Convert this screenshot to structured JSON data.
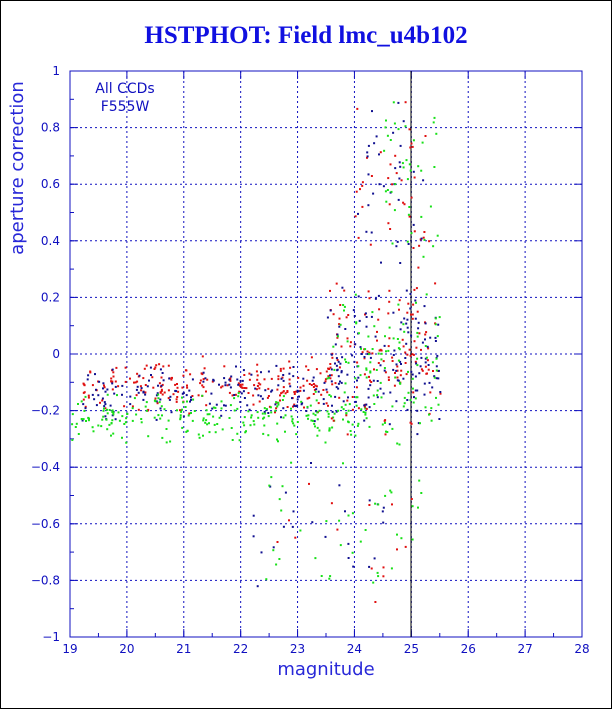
{
  "title": "HSTPHOT: Field lmc_u4b102",
  "chart_data": {
    "type": "scatter",
    "title": "HSTPHOT: Field lmc_u4b102",
    "xlabel": "magnitude",
    "ylabel": "aperture correction",
    "xlim": [
      19,
      28
    ],
    "ylim": [
      -1,
      1
    ],
    "xticks": [
      "19",
      "20",
      "21",
      "22",
      "23",
      "24",
      "25",
      "26",
      "27",
      "28"
    ],
    "yticks": [
      "1",
      "0.8",
      "0.6",
      "0.4",
      "0.2",
      "0",
      "−0.2",
      "−0.4",
      "−0.6",
      "−0.8",
      "−1"
    ],
    "annotations": [
      "All CCDs",
      "F555W"
    ],
    "grid": true,
    "reference_line_x": 25,
    "series_colors": {
      "red": "#e01010",
      "blue": "#101090",
      "green": "#18e018"
    },
    "clusters": [
      {
        "color": "red",
        "n": 220,
        "x": [
          19.2,
          23.6
        ],
        "y": [
          -0.22,
          0.0
        ]
      },
      {
        "color": "blue",
        "n": 170,
        "x": [
          19.2,
          24.0
        ],
        "y": [
          -0.24,
          -0.02
        ]
      },
      {
        "color": "green",
        "n": 230,
        "x": [
          19.0,
          24.2
        ],
        "y": [
          -0.32,
          -0.12
        ]
      },
      {
        "color": "red",
        "n": 130,
        "x": [
          23.5,
          25.5
        ],
        "y": [
          -0.3,
          0.3
        ]
      },
      {
        "color": "blue",
        "n": 130,
        "x": [
          23.5,
          25.5
        ],
        "y": [
          -0.3,
          0.25
        ]
      },
      {
        "color": "green",
        "n": 110,
        "x": [
          23.5,
          25.5
        ],
        "y": [
          -0.35,
          0.25
        ]
      },
      {
        "color": "red",
        "n": 40,
        "x": [
          24.0,
          25.3
        ],
        "y": [
          0.25,
          0.95
        ]
      },
      {
        "color": "blue",
        "n": 35,
        "x": [
          24.0,
          25.3
        ],
        "y": [
          0.25,
          0.95
        ]
      },
      {
        "color": "green",
        "n": 40,
        "x": [
          24.5,
          25.5
        ],
        "y": [
          0.25,
          0.95
        ]
      },
      {
        "color": "blue",
        "n": 25,
        "x": [
          22.0,
          24.6
        ],
        "y": [
          -0.85,
          -0.35
        ]
      },
      {
        "color": "green",
        "n": 40,
        "x": [
          22.2,
          25.2
        ],
        "y": [
          -0.85,
          -0.35
        ]
      },
      {
        "color": "red",
        "n": 15,
        "x": [
          22.5,
          25.2
        ],
        "y": [
          -0.9,
          -0.4
        ]
      }
    ]
  }
}
